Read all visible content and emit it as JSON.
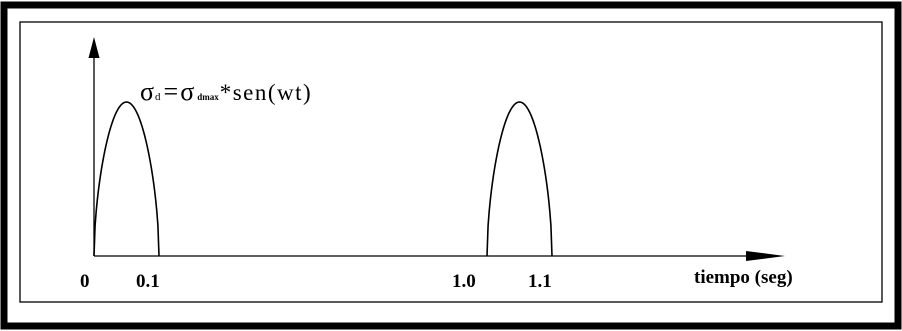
{
  "formula": {
    "sigma_lhs": "σ",
    "sub_lhs": "d",
    "equals": "=",
    "sigma_rhs": "σ",
    "sub_rhs": "dmax",
    "rest": "*sen(wt)"
  },
  "x_axis": {
    "label": "tiempo (seg)",
    "ticks": [
      "0",
      "0.1",
      "1.0",
      "1.1"
    ]
  },
  "chart_data": {
    "type": "line",
    "xlabel": "tiempo (seg)",
    "ylabel": "",
    "x_ticks": [
      0,
      0.1,
      1.0,
      1.1
    ],
    "pulses": [
      {
        "start": 0,
        "end": 0.1
      },
      {
        "start": 1.0,
        "end": 1.1
      }
    ]
  },
  "colors": {
    "frame": "#000000",
    "ink": "#000000",
    "background": "#ffffff"
  }
}
